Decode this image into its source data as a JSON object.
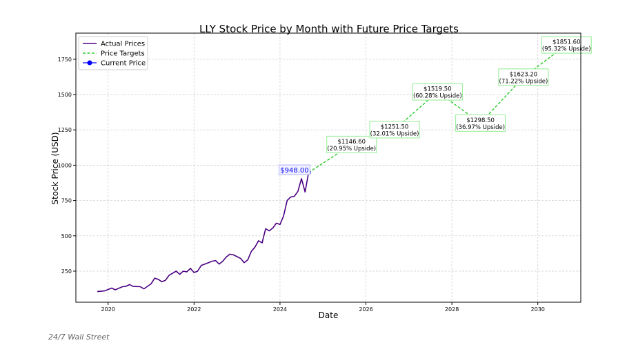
{
  "source": "24/7 Wall Street",
  "colors": {
    "actual": "#4b0082",
    "targets": "#32cd32",
    "current": "#0000ff",
    "target_box_border": "#90ee90",
    "current_box_border": "#b0b0ff"
  },
  "chart_data": {
    "type": "line",
    "title": "LLY Stock Price by Month with Future Price Targets",
    "xlabel": "Date",
    "ylabel": "Stock Price (USD)",
    "xlim": [
      "2019-04",
      "2031-01"
    ],
    "ylim": [
      30,
      1935
    ],
    "x_ticks": [
      "2020",
      "2022",
      "2024",
      "2026",
      "2028",
      "2030"
    ],
    "y_ticks": [
      250,
      500,
      750,
      1000,
      1250,
      1500,
      1750
    ],
    "grid": true,
    "legend_position": "top-left",
    "legend": [
      {
        "label": "Actual Prices",
        "style": "line",
        "color": "#4b0082"
      },
      {
        "label": "Price Targets",
        "style": "dashed",
        "color": "#32cd32"
      },
      {
        "label": "Current Price",
        "style": "marker",
        "color": "#0000ff"
      }
    ],
    "series": [
      {
        "name": "Actual Prices",
        "points": [
          [
            "2019-10",
            105
          ],
          [
            "2019-12",
            110
          ],
          [
            "2020-02",
            130
          ],
          [
            "2020-03",
            118
          ],
          [
            "2020-05",
            140
          ],
          [
            "2020-06",
            143
          ],
          [
            "2020-07",
            155
          ],
          [
            "2020-08",
            142
          ],
          [
            "2020-10",
            140
          ],
          [
            "2020-11",
            125
          ],
          [
            "2021-01",
            160
          ],
          [
            "2021-02",
            200
          ],
          [
            "2021-03",
            192
          ],
          [
            "2021-04",
            175
          ],
          [
            "2021-05",
            185
          ],
          [
            "2021-06",
            220
          ],
          [
            "2021-08",
            250
          ],
          [
            "2021-09",
            228
          ],
          [
            "2021-10",
            250
          ],
          [
            "2021-11",
            245
          ],
          [
            "2021-12",
            270
          ],
          [
            "2022-01",
            240
          ],
          [
            "2022-02",
            250
          ],
          [
            "2022-03",
            290
          ],
          [
            "2022-05",
            310
          ],
          [
            "2022-06",
            320
          ],
          [
            "2022-07",
            325
          ],
          [
            "2022-08",
            300
          ],
          [
            "2022-09",
            320
          ],
          [
            "2022-10",
            350
          ],
          [
            "2022-11",
            370
          ],
          [
            "2022-12",
            365
          ],
          [
            "2023-02",
            340
          ],
          [
            "2023-03",
            310
          ],
          [
            "2023-04",
            330
          ],
          [
            "2023-05",
            390
          ],
          [
            "2023-06",
            420
          ],
          [
            "2023-07",
            465
          ],
          [
            "2023-08",
            450
          ],
          [
            "2023-09",
            550
          ],
          [
            "2023-10",
            535
          ],
          [
            "2023-11",
            555
          ],
          [
            "2023-12",
            590
          ],
          [
            "2024-01",
            580
          ],
          [
            "2024-02",
            640
          ],
          [
            "2024-03",
            750
          ],
          [
            "2024-04",
            775
          ],
          [
            "2024-05",
            780
          ],
          [
            "2024-06",
            815
          ],
          [
            "2024-07",
            905
          ],
          [
            "2024-08",
            810
          ],
          [
            "2024-09",
            948
          ]
        ]
      },
      {
        "name": "Price Targets",
        "points": [
          [
            "2024-09",
            948
          ],
          [
            "2025-09",
            1146.6
          ],
          [
            "2026-09",
            1251.5
          ],
          [
            "2027-09",
            1519.5
          ],
          [
            "2028-09",
            1298.5
          ],
          [
            "2029-09",
            1623.2
          ],
          [
            "2030-09",
            1851.6
          ]
        ]
      }
    ],
    "current_price": {
      "x": "2024-09",
      "y": 948,
      "label": "$948.00"
    },
    "targets": [
      {
        "x": "2025-09",
        "y": 1146.6,
        "price": "$1146.60",
        "upside": "(20.95% Upside)"
      },
      {
        "x": "2026-09",
        "y": 1251.5,
        "price": "$1251.50",
        "upside": "(32.01% Upside)"
      },
      {
        "x": "2027-09",
        "y": 1519.5,
        "price": "$1519.50",
        "upside": "(60.28% Upside)"
      },
      {
        "x": "2028-09",
        "y": 1298.5,
        "price": "$1298.50",
        "upside": "(36.97% Upside)"
      },
      {
        "x": "2029-09",
        "y": 1623.2,
        "price": "$1623.20",
        "upside": "(71.22% Upside)"
      },
      {
        "x": "2030-09",
        "y": 1851.6,
        "price": "$1851.60",
        "upside": "(95.32% Upside)"
      }
    ]
  }
}
